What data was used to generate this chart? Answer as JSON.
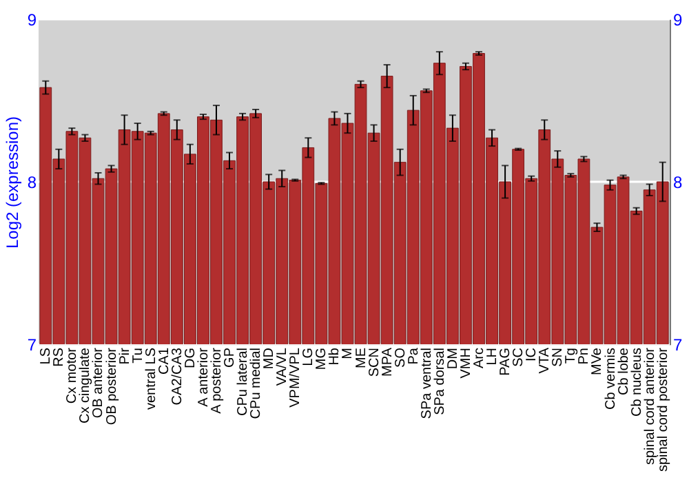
{
  "chart_data": {
    "type": "bar",
    "ylabel": "Log2 (expression)",
    "categories": [
      "LS",
      "RS",
      "Cx motor",
      "Cx cingulate",
      "OB anterior",
      "OB posterior",
      "Pir",
      "Tu",
      "ventral LS",
      "CA1",
      "CA2/CA3",
      "DG",
      "A anterior",
      "A posterior",
      "GP",
      "CPu lateral",
      "CPu medial",
      "MD",
      "VA/VL",
      "VPM/VPL",
      "LG",
      "MG",
      "Hb",
      "M",
      "ME",
      "SCN",
      "MPA",
      "SO",
      "Pa",
      "SPa ventral",
      "SPa dorsal",
      "DM",
      "VMH",
      "Arc",
      "LH",
      "PAG",
      "SC",
      "IC",
      "VTA",
      "SN",
      "Tg",
      "Pn",
      "MVe",
      "Cb vermis",
      "Cb lobe",
      "Cb nucleus",
      "spinal cord anterior",
      "spinal cord posterior"
    ],
    "values": [
      8.58,
      8.14,
      8.31,
      8.27,
      8.02,
      8.08,
      8.32,
      8.31,
      8.3,
      8.42,
      8.32,
      8.17,
      8.4,
      8.38,
      8.13,
      8.4,
      8.42,
      8.0,
      8.02,
      8.01,
      8.21,
      7.99,
      8.39,
      8.36,
      8.6,
      8.3,
      8.65,
      8.12,
      8.44,
      8.56,
      8.73,
      8.33,
      8.71,
      8.79,
      8.27,
      8.0,
      8.2,
      8.02,
      8.32,
      8.14,
      8.04,
      8.14,
      7.72,
      7.98,
      8.03,
      7.82,
      7.95,
      8.0
    ],
    "errors": [
      0.04,
      0.06,
      0.02,
      0.02,
      0.035,
      0.02,
      0.09,
      0.05,
      0.01,
      0.01,
      0.06,
      0.06,
      0.015,
      0.09,
      0.05,
      0.02,
      0.025,
      0.045,
      0.05,
      0.005,
      0.06,
      0.005,
      0.04,
      0.06,
      0.02,
      0.05,
      0.07,
      0.08,
      0.09,
      0.01,
      0.07,
      0.08,
      0.02,
      0.01,
      0.05,
      0.1,
      0.005,
      0.015,
      0.06,
      0.05,
      0.01,
      0.015,
      0.025,
      0.03,
      0.01,
      0.02,
      0.035,
      0.12
    ],
    "color": "#b22e2e",
    "ylim": [
      7,
      9
    ],
    "yticks": [
      7,
      8,
      9
    ],
    "y2lim": [
      7,
      9
    ],
    "y2ticks": [
      7,
      8,
      9
    ],
    "grid": "y"
  }
}
